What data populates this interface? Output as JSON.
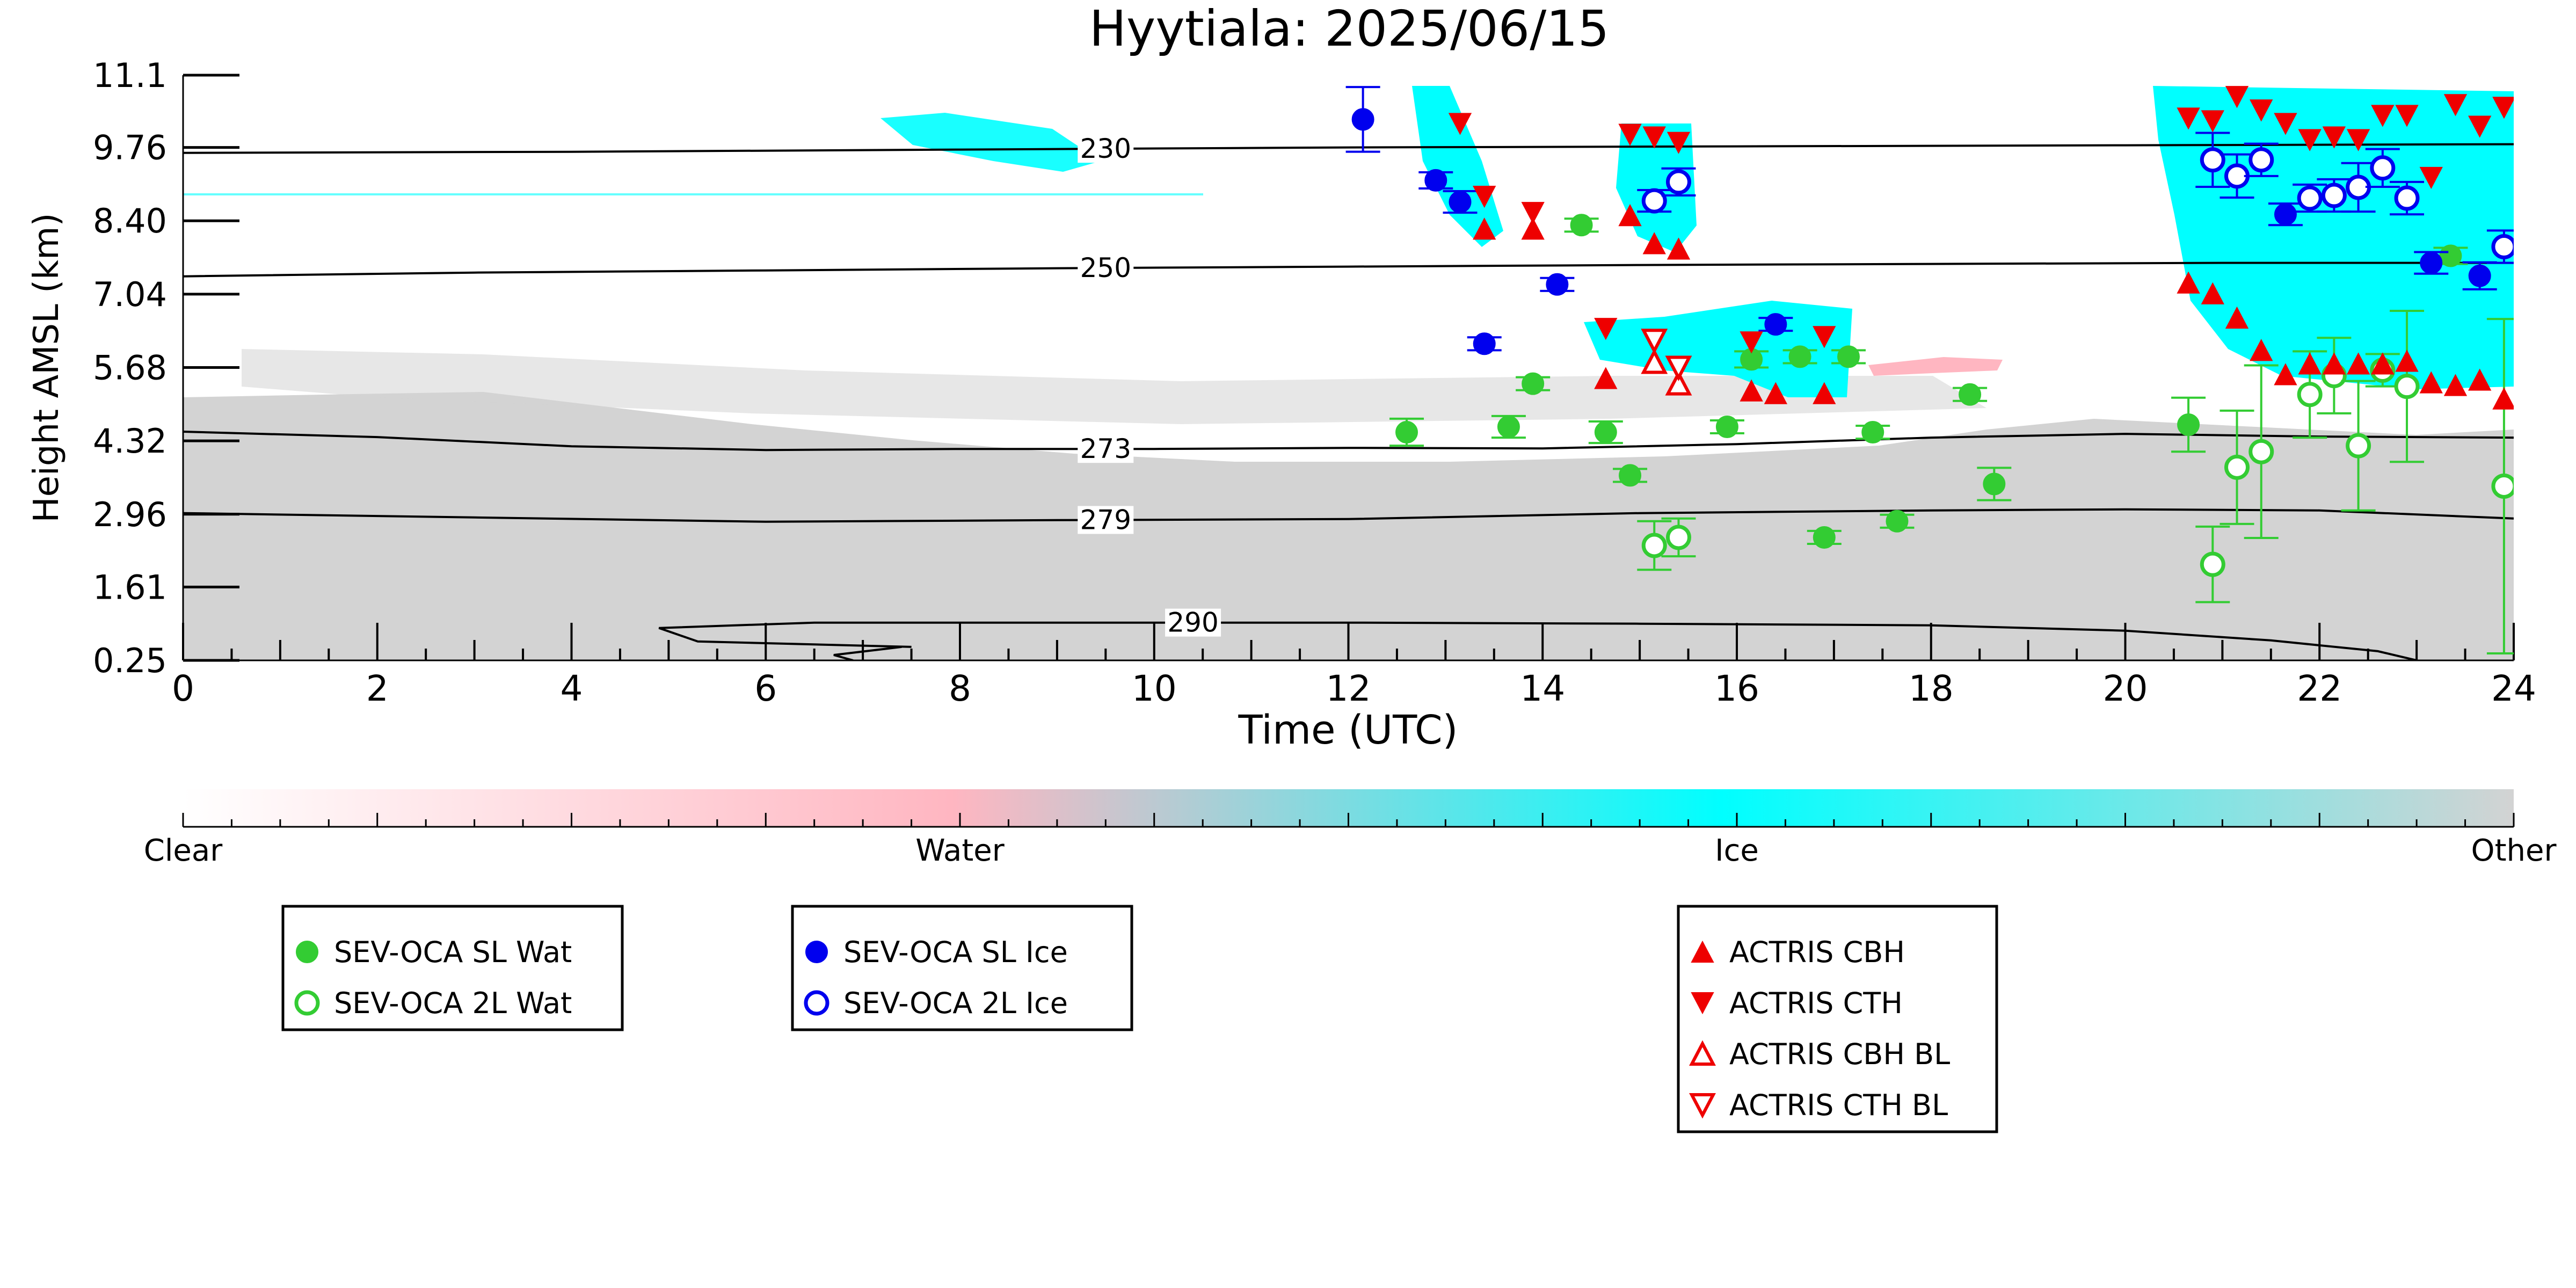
{
  "chart_data": {
    "type": "scatter",
    "title": "Hyytiala: 2025/06/15",
    "xlabel": "Time (UTC)",
    "ylabel": "Height AMSL (km)",
    "xlim": [
      0,
      24
    ],
    "ylim": [
      0.25,
      11.1
    ],
    "xticks": [
      0,
      2,
      4,
      6,
      8,
      10,
      12,
      14,
      16,
      18,
      20,
      22,
      24
    ],
    "xtick_labels": [
      "0",
      "2",
      "4",
      "6",
      "8",
      "10",
      "12",
      "14",
      "16",
      "18",
      "20",
      "22",
      "24"
    ],
    "yticks": [
      0.25,
      1.61,
      2.96,
      4.32,
      5.68,
      7.04,
      8.4,
      9.76,
      11.1
    ],
    "ytick_labels": [
      "0.25",
      "1.61",
      "2.96",
      "4.32",
      "5.68",
      "7.04",
      "8.40",
      "9.76",
      "11.1"
    ],
    "grid": false,
    "colorbar": {
      "labels": [
        "Clear",
        "Water",
        "Ice",
        "Other"
      ],
      "colors": [
        "#ffffff",
        "#ffb6c1",
        "#00ffff",
        "#d3d3d3"
      ]
    },
    "contours": [
      {
        "label": "230",
        "x": [
          0,
          4,
          8,
          12,
          16,
          20,
          24
        ],
        "y": [
          9.66,
          9.68,
          9.72,
          9.76,
          9.78,
          9.8,
          9.82
        ],
        "label_x": 9.5
      },
      {
        "label": "250",
        "x": [
          0,
          3,
          6,
          9,
          12,
          15,
          18,
          21,
          24
        ],
        "y": [
          7.37,
          7.44,
          7.48,
          7.52,
          7.55,
          7.58,
          7.6,
          7.62,
          7.62
        ],
        "label_x": 9.5
      },
      {
        "label": "273",
        "x": [
          0,
          2,
          4,
          6,
          8,
          10,
          12,
          14,
          16,
          18,
          20,
          22,
          24
        ],
        "y": [
          4.49,
          4.39,
          4.22,
          4.15,
          4.17,
          4.17,
          4.19,
          4.18,
          4.26,
          4.38,
          4.45,
          4.4,
          4.38
        ],
        "label_x": 9.5
      },
      {
        "label": "279",
        "x": [
          0,
          3,
          6,
          9,
          12,
          15,
          18,
          20,
          22,
          24
        ],
        "y": [
          2.98,
          2.9,
          2.82,
          2.85,
          2.87,
          2.98,
          3.03,
          3.05,
          3.03,
          2.88
        ],
        "label_x": 9.5
      },
      {
        "label": "290",
        "x": [
          7.5,
          5.3,
          4.9,
          6.5,
          9,
          12,
          15,
          18,
          20,
          21.5,
          22.6,
          23
        ],
        "y": [
          0.5,
          0.6,
          0.85,
          0.95,
          0.95,
          0.95,
          0.93,
          0.9,
          0.8,
          0.62,
          0.42,
          0.25
        ],
        "label_x": 10.4
      },
      {
        "label": "",
        "x": [
          7.4,
          6.7,
          6.9
        ],
        "y": [
          0.5,
          0.35,
          0.25
        ],
        "label_x": 0
      }
    ],
    "legend_groups": [
      {
        "items": [
          {
            "label": "SEV-OCA SL Wat",
            "marker": "circle",
            "color": "#33cc33",
            "filled": true
          },
          {
            "label": "SEV-OCA 2L Wat",
            "marker": "circle",
            "color": "#33cc33",
            "filled": false
          }
        ]
      },
      {
        "items": [
          {
            "label": "SEV-OCA SL Ice",
            "marker": "circle",
            "color": "#0000ee",
            "filled": true
          },
          {
            "label": "SEV-OCA 2L Ice",
            "marker": "circle",
            "color": "#0000ee",
            "filled": false
          }
        ]
      },
      {
        "items": [
          {
            "label": "ACTRIS CBH",
            "marker": "triangle-up",
            "color": "#ee0000",
            "filled": true
          },
          {
            "label": "ACTRIS CTH",
            "marker": "triangle-down",
            "color": "#ee0000",
            "filled": true
          },
          {
            "label": "ACTRIS CBH BL",
            "marker": "triangle-up",
            "color": "#ee0000",
            "filled": false
          },
          {
            "label": "ACTRIS CTH BL",
            "marker": "triangle-down",
            "color": "#ee0000",
            "filled": false
          }
        ]
      }
    ],
    "series": [
      {
        "name": "SEV-OCA SL Wat",
        "marker": "circle",
        "color": "#33cc33",
        "filled": true,
        "points": [
          [
            12.6,
            4.48,
            0.25
          ],
          [
            13.65,
            4.58,
            0.2
          ],
          [
            13.9,
            5.38,
            0.12
          ],
          [
            14.4,
            8.32,
            0.12
          ],
          [
            14.65,
            4.48,
            0.2
          ],
          [
            14.9,
            3.68,
            0.12
          ],
          [
            15.9,
            4.58,
            0.12
          ],
          [
            16.15,
            5.83,
            0.15
          ],
          [
            16.65,
            5.88,
            0.12
          ],
          [
            16.9,
            2.53,
            0.12
          ],
          [
            17.15,
            5.88,
            0.12
          ],
          [
            17.4,
            4.48,
            0.12
          ],
          [
            17.65,
            2.83,
            0.12
          ],
          [
            18.4,
            5.18,
            0.12
          ],
          [
            18.65,
            3.52,
            0.3
          ],
          [
            20.65,
            4.62,
            0.5
          ],
          [
            23.35,
            7.75,
            0.15
          ]
        ]
      },
      {
        "name": "SEV-OCA 2L Wat",
        "marker": "circle",
        "color": "#33cc33",
        "filled": false,
        "points": [
          [
            15.15,
            2.38,
            0.45
          ],
          [
            15.4,
            2.53,
            0.35
          ],
          [
            20.9,
            2.03,
            0.7
          ],
          [
            21.15,
            3.83,
            1.05
          ],
          [
            21.4,
            4.12,
            1.6
          ],
          [
            21.9,
            5.18,
            0.8
          ],
          [
            22.15,
            5.53,
            0.7
          ],
          [
            22.4,
            4.23,
            1.2
          ],
          [
            22.65,
            5.63,
            0.3
          ],
          [
            22.9,
            5.33,
            1.4
          ],
          [
            23.9,
            3.48,
            3.1
          ]
        ]
      },
      {
        "name": "SEV-OCA SL Ice",
        "marker": "circle",
        "color": "#0000ee",
        "filled": true,
        "points": [
          [
            12.15,
            10.28,
            0.6
          ],
          [
            12.9,
            9.15,
            0.15
          ],
          [
            13.15,
            8.75,
            0.2
          ],
          [
            13.4,
            6.12,
            0.12
          ],
          [
            14.15,
            7.22,
            0.12
          ],
          [
            16.4,
            6.48,
            0.12
          ],
          [
            21.65,
            8.52,
            0.2
          ],
          [
            23.15,
            7.62,
            0.2
          ],
          [
            23.65,
            7.38,
            0.25
          ]
        ]
      },
      {
        "name": "SEV-OCA 2L Ice",
        "marker": "circle",
        "color": "#0000ee",
        "filled": false,
        "points": [
          [
            15.15,
            8.77,
            0.2
          ],
          [
            15.4,
            9.12,
            0.25
          ],
          [
            20.9,
            9.53,
            0.5
          ],
          [
            21.15,
            9.23,
            0.4
          ],
          [
            21.4,
            9.53,
            0.3
          ],
          [
            21.9,
            8.82,
            0.25
          ],
          [
            22.15,
            8.87,
            0.3
          ],
          [
            22.4,
            9.02,
            0.45
          ],
          [
            22.65,
            9.38,
            0.35
          ],
          [
            22.9,
            8.82,
            0.3
          ],
          [
            23.9,
            7.92,
            0.3
          ]
        ]
      },
      {
        "name": "ACTRIS CBH",
        "marker": "triangle-up",
        "color": "#ee0000",
        "filled": true,
        "points": [
          [
            13.4,
            8.25
          ],
          [
            13.9,
            8.25
          ],
          [
            14.65,
            5.48
          ],
          [
            14.9,
            8.5
          ],
          [
            15.15,
            7.98
          ],
          [
            15.4,
            7.88
          ],
          [
            16.15,
            5.25
          ],
          [
            16.4,
            5.2
          ],
          [
            16.9,
            5.2
          ],
          [
            20.65,
            7.25
          ],
          [
            20.9,
            7.05
          ],
          [
            21.15,
            6.6
          ],
          [
            21.4,
            6.0
          ],
          [
            21.65,
            5.55
          ],
          [
            21.9,
            5.75
          ],
          [
            22.15,
            5.75
          ],
          [
            22.4,
            5.75
          ],
          [
            22.65,
            5.75
          ],
          [
            22.9,
            5.8
          ],
          [
            23.15,
            5.4
          ],
          [
            23.4,
            5.35
          ],
          [
            23.65,
            5.45
          ],
          [
            23.9,
            5.1
          ]
        ]
      },
      {
        "name": "ACTRIS CTH",
        "marker": "triangle-down",
        "color": "#ee0000",
        "filled": true,
        "points": [
          [
            13.15,
            10.2
          ],
          [
            13.4,
            8.85
          ],
          [
            13.9,
            8.55
          ],
          [
            14.65,
            6.4
          ],
          [
            14.9,
            10.0
          ],
          [
            15.15,
            9.95
          ],
          [
            15.4,
            9.85
          ],
          [
            16.15,
            6.15
          ],
          [
            16.9,
            6.25
          ],
          [
            20.65,
            10.3
          ],
          [
            20.9,
            10.25
          ],
          [
            21.15,
            10.7
          ],
          [
            21.4,
            10.45
          ],
          [
            21.65,
            10.2
          ],
          [
            21.9,
            9.9
          ],
          [
            22.15,
            9.95
          ],
          [
            22.4,
            9.9
          ],
          [
            22.65,
            10.35
          ],
          [
            22.9,
            10.35
          ],
          [
            23.15,
            9.2
          ],
          [
            23.4,
            10.55
          ],
          [
            23.65,
            10.15
          ],
          [
            23.9,
            10.5
          ]
        ]
      },
      {
        "name": "ACTRIS CBH BL",
        "marker": "triangle-up",
        "color": "#ee0000",
        "filled": false,
        "points": [
          [
            15.15,
            5.78
          ],
          [
            15.4,
            5.38
          ]
        ]
      },
      {
        "name": "ACTRIS CTH BL",
        "marker": "triangle-down",
        "color": "#ee0000",
        "filled": false,
        "points": [
          [
            15.15,
            6.18
          ],
          [
            15.4,
            5.68
          ]
        ]
      }
    ]
  }
}
